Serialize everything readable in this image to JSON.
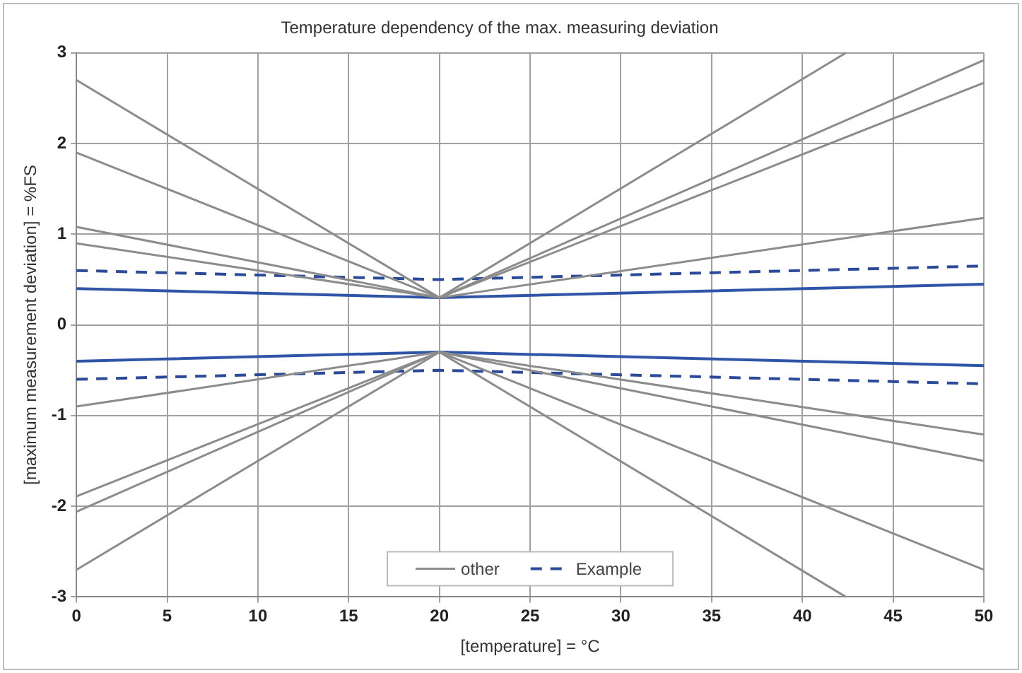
{
  "chart_data": {
    "type": "line",
    "title": "Temperature dependency of the max. measuring deviation",
    "xlabel": "[temperature] = °C",
    "ylabel": "[maximum measurement deviation] = %FS",
    "xlim": [
      0,
      50
    ],
    "xticks": [
      0,
      5,
      10,
      15,
      20,
      25,
      30,
      35,
      40,
      45,
      50
    ],
    "ylim": [
      -3,
      3
    ],
    "yticks": [
      -3,
      -2,
      -1,
      0,
      1,
      2,
      3
    ],
    "grid": true,
    "legend": "bottom",
    "marker": "none",
    "series": [
      {
        "color": "#8c8c8c",
        "x": [
          0,
          20,
          42.4
        ],
        "values": [
          2.7,
          0.3,
          3
        ],
        "name": "other"
      },
      {
        "color": "#8c8c8c",
        "x": [
          0,
          20,
          50
        ],
        "values": [
          1.9,
          0.3,
          2.92
        ]
      },
      {
        "color": "#8c8c8c",
        "x": [
          0,
          20,
          50
        ],
        "values": [
          1.08,
          0.3,
          2.67
        ]
      },
      {
        "color": "#8c8c8c",
        "x": [
          0,
          20,
          50
        ],
        "values": [
          0.9,
          0.3,
          1.18
        ]
      },
      {
        "color": "#8c8c8c",
        "x": [
          0,
          20,
          50
        ],
        "values": [
          -0.9,
          -0.3,
          -1.21
        ]
      },
      {
        "color": "#8c8c8c",
        "x": [
          0,
          20,
          50
        ],
        "values": [
          -1.89,
          -0.3,
          -1.5
        ]
      },
      {
        "color": "#8c8c8c",
        "x": [
          0,
          20,
          50
        ],
        "values": [
          -2.06,
          -0.3,
          -2.7
        ]
      },
      {
        "color": "#8c8c8c",
        "x": [
          0,
          20,
          42.4
        ],
        "values": [
          -2.7,
          -0.3,
          -3
        ]
      },
      {
        "color": "#2e55a8",
        "x": [
          0,
          20,
          50
        ],
        "values": [
          0.4,
          0.3,
          0.45
        ]
      },
      {
        "color": "#2e55a8",
        "x": [
          0,
          20,
          50
        ],
        "values": [
          -0.4,
          -0.3,
          -0.45
        ]
      },
      {
        "color": "#2b4a9a",
        "x": [
          0,
          20,
          50
        ],
        "values": [
          0.6,
          0.5,
          0.65
        ],
        "line_style": "dashed",
        "name": "Example"
      },
      {
        "color": "#2b4a9a",
        "x": [
          0,
          20,
          50
        ],
        "values": [
          -0.6,
          -0.5,
          -0.65
        ],
        "line_style": "dashed"
      }
    ]
  }
}
